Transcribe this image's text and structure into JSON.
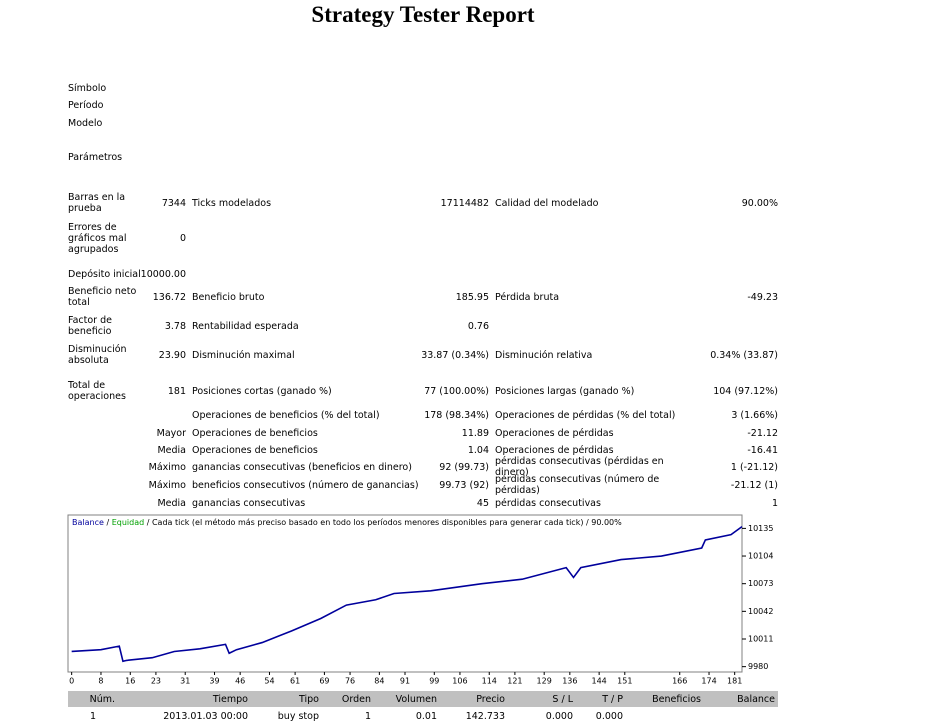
{
  "report": {
    "title": "Strategy Tester Report",
    "info": [
      "Símbolo",
      "Período",
      "Modelo",
      "Parámetros"
    ],
    "stats": [
      [
        [
          "Barras en la prueba",
          "7344"
        ],
        [
          "Ticks modelados",
          "17114482"
        ],
        [
          "Calidad del modelado",
          "90.00%"
        ]
      ],
      [
        [
          "Errores de gráficos mal agrupados",
          "0"
        ]
      ],
      [
        [
          "Depósito inicial",
          "10000.00"
        ]
      ],
      [
        [
          "Beneficio neto total",
          "136.72"
        ],
        [
          "Beneficio bruto",
          "185.95"
        ],
        [
          "Pérdida bruta",
          "-49.23"
        ]
      ],
      [
        [
          "Factor de beneficio",
          "3.78"
        ],
        [
          "Rentabilidad esperada",
          "0.76"
        ]
      ],
      [
        [
          "Disminución absoluta",
          "23.90"
        ],
        [
          "Disminución maximal",
          "33.87 (0.34%)"
        ],
        [
          "Disminución relativa",
          "0.34% (33.87)"
        ]
      ],
      [
        [
          "Total de operaciones",
          "181"
        ],
        [
          "Posiciones cortas (ganado %)",
          "77 (100.00%)"
        ],
        [
          "Posiciones largas (ganado %)",
          "104 (97.12%)"
        ]
      ],
      [
        null,
        [
          "Operaciones de beneficios (% del total)",
          "178 (98.34%)"
        ],
        [
          "Operaciones de pérdidas (% del total)",
          "3 (1.66%)"
        ]
      ],
      [
        [
          null,
          "Mayor"
        ],
        [
          "Operaciones de beneficios",
          "11.89"
        ],
        [
          "Operaciones de pérdidas",
          "-21.12"
        ]
      ],
      [
        [
          null,
          "Media"
        ],
        [
          "Operaciones de beneficios",
          "1.04"
        ],
        [
          "Operaciones de pérdidas",
          "-16.41"
        ]
      ],
      [
        [
          null,
          "Máximo"
        ],
        [
          "ganancias consecutivas (beneficios en dinero)",
          "92 (99.73)"
        ],
        [
          "pérdidas consecutivas (pérdidas en dinero)",
          "1 (-21.12)"
        ]
      ],
      [
        [
          null,
          "Máximo"
        ],
        [
          "beneficios consecutivos (número de ganancias)",
          "99.73 (92)"
        ],
        [
          "pérdidas consecutivas (número de pérdidas)",
          "-21.12 (1)"
        ]
      ],
      [
        [
          null,
          "Media"
        ],
        [
          "ganancias consecutivas",
          "45"
        ],
        [
          "pérdidas consecutivas",
          "1"
        ]
      ]
    ],
    "trades": {
      "header": [
        "Núm.",
        "Tiempo",
        "Tipo",
        "Orden",
        "Volumen",
        "Precio",
        "S / L",
        "T / P",
        "Beneficios",
        "Balance"
      ],
      "rows": [
        [
          "1",
          "2013.01.03 00:00",
          "buy stop",
          "1",
          "0.01",
          "142.733",
          "0.000",
          "0.000"
        ]
      ]
    }
  },
  "chart_data": {
    "type": "line",
    "separator": "/",
    "note": "/ Cada tick (el método más preciso basado en todo los períodos menores disponibles para generar cada tick) / 90.00%",
    "equity_legend": {
      "name": "Equidad",
      "color": "#00a000"
    },
    "x": [
      0,
      8,
      13,
      14,
      15,
      22,
      28,
      35,
      42,
      43,
      45,
      52,
      60,
      68,
      75,
      83,
      88,
      98,
      112,
      123,
      135,
      137,
      139,
      150,
      161,
      172,
      173,
      180,
      183
    ],
    "series": [
      {
        "name": "Balance",
        "color": "#00009c",
        "values": [
          9997,
          9999,
          10003,
          9986,
          9987,
          9990,
          9997,
          10000,
          10005,
          9995,
          9999,
          10007,
          10020,
          10034,
          10049,
          10055,
          10062,
          10065,
          10073,
          10078,
          10091,
          10080,
          10091,
          10100,
          10104,
          10113,
          10122,
          10128,
          10137
        ]
      }
    ],
    "xlim": [
      -1,
      183
    ],
    "ylim": [
      9974,
      10150
    ],
    "xticks": [
      0,
      8,
      16,
      23,
      31,
      39,
      46,
      54,
      61,
      69,
      76,
      84,
      91,
      99,
      106,
      114,
      121,
      129,
      136,
      144,
      151,
      166,
      174,
      181
    ],
    "yticks": [
      9980,
      10011,
      10042,
      10073,
      10104,
      10135
    ]
  }
}
